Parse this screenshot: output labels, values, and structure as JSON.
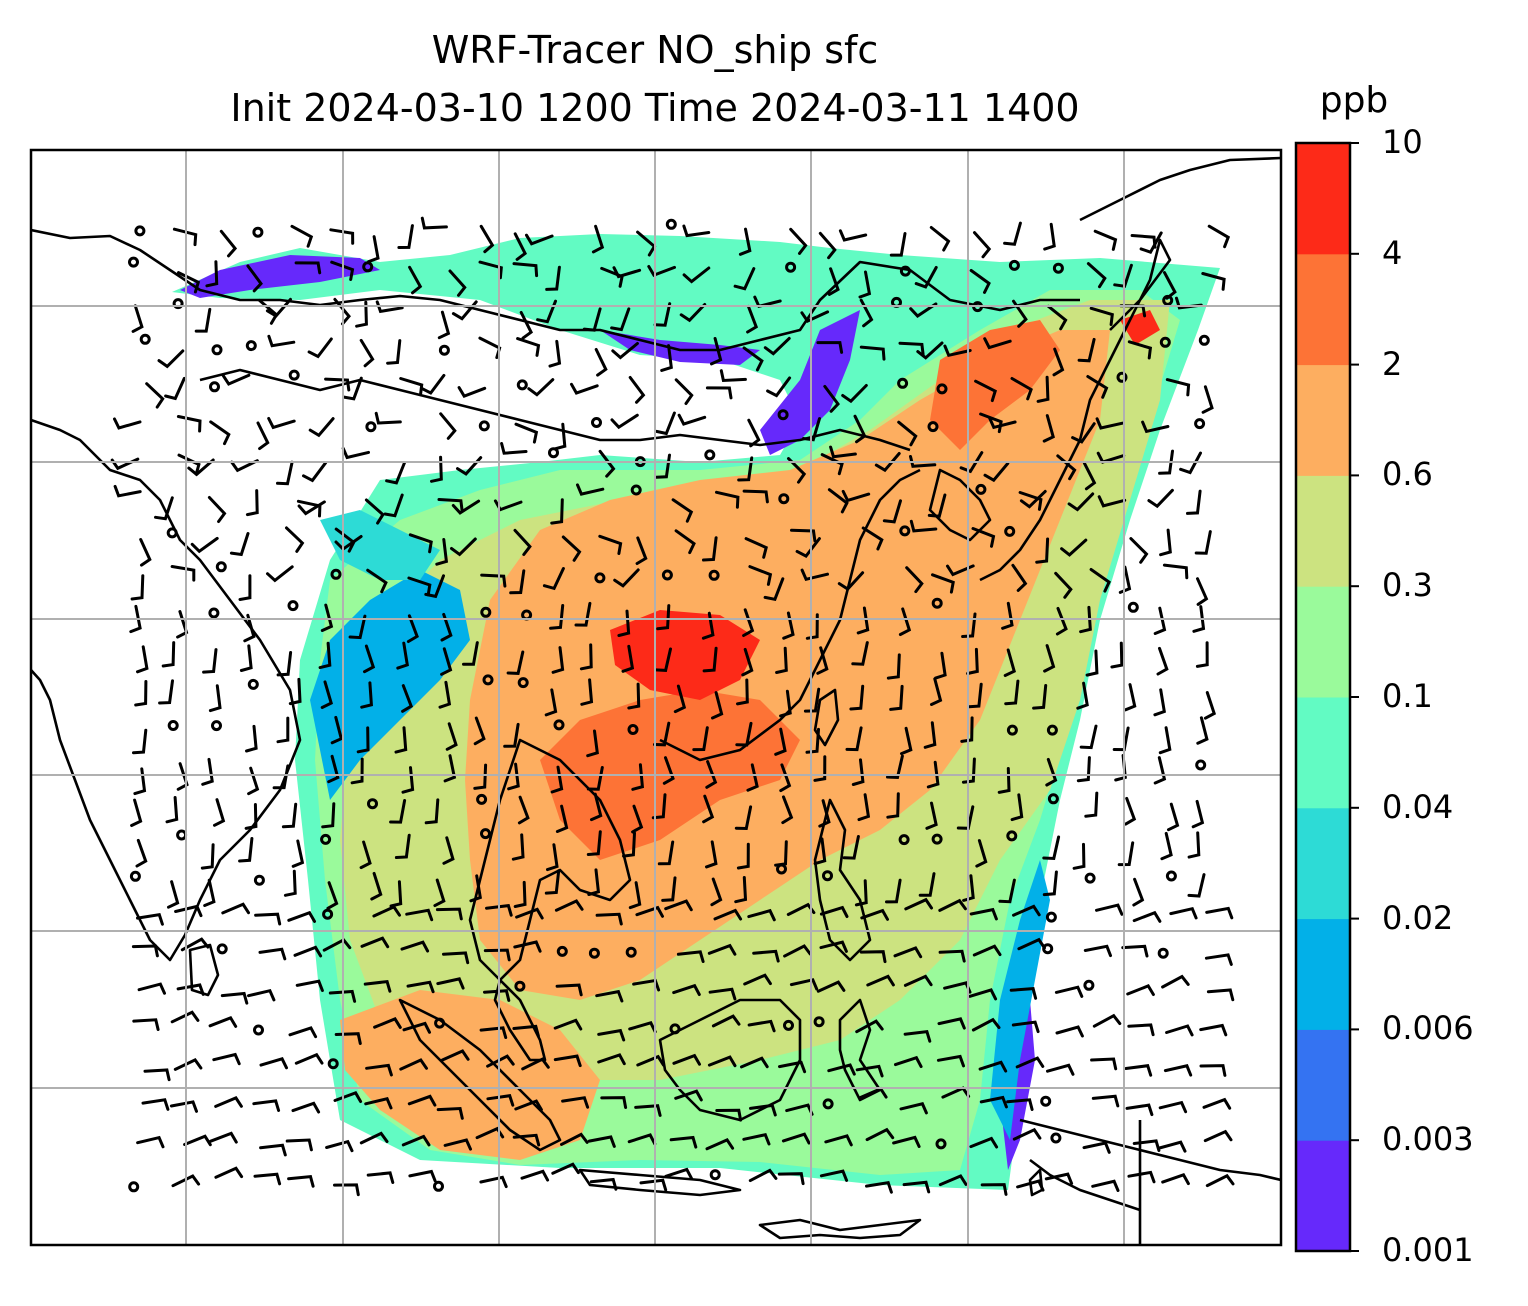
{
  "title_line1": "WRF-Tracer NO_ship sfc",
  "title_line2": "Init 2024-03-10 1200 Time 2024-03-11 1400",
  "colorbar": {
    "unit": "ppb",
    "tick_labels": [
      "0.001",
      "0.003",
      "0.006",
      "0.02",
      "0.04",
      "0.1",
      "0.3",
      "0.6",
      "2",
      "4",
      "10"
    ],
    "colors": [
      "#6629fb",
      "#3473f2",
      "#02b0e8",
      "#2ddbd6",
      "#62fbc3",
      "#9afa9b",
      "#cce380",
      "#fdae60",
      "#fd7336",
      "#fd2a18"
    ]
  },
  "map": {
    "gridlines": true,
    "overlay_symbols": [
      "wind-barbs",
      "calm-circles",
      "coastlines"
    ]
  }
}
